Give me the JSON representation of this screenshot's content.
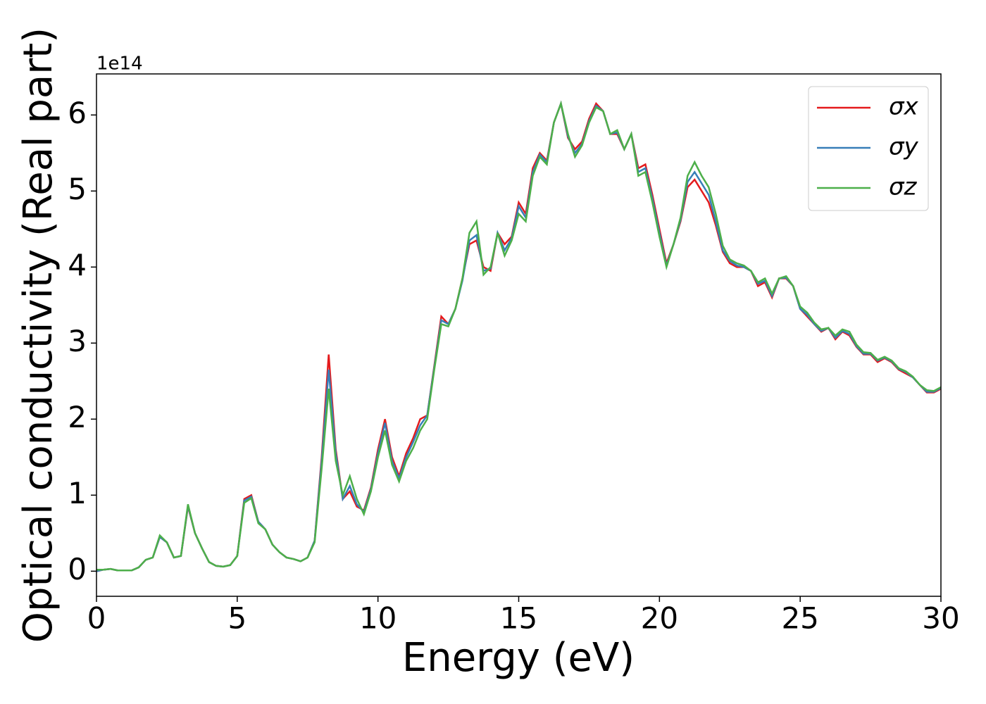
{
  "chart_data": {
    "type": "line",
    "xlabel": "Energy (eV)",
    "ylabel": "Optical conductivity (Real part)",
    "y_offset_label": "1e14",
    "xlim": [
      0,
      30
    ],
    "ylim": [
      -0.33,
      6.54
    ],
    "xticks": [
      0,
      5,
      10,
      15,
      20,
      25,
      30
    ],
    "yticks": [
      0,
      1,
      2,
      3,
      4,
      5,
      6
    ],
    "grid": false,
    "legend": "upper right",
    "x": [
      0,
      0.25,
      0.5,
      0.75,
      1,
      1.25,
      1.5,
      1.75,
      2,
      2.25,
      2.5,
      2.75,
      3,
      3.25,
      3.5,
      3.75,
      4,
      4.25,
      4.5,
      4.75,
      5,
      5.25,
      5.5,
      5.75,
      6,
      6.25,
      6.5,
      6.75,
      7,
      7.25,
      7.5,
      7.75,
      8,
      8.25,
      8.5,
      8.75,
      9,
      9.25,
      9.5,
      9.75,
      10,
      10.25,
      10.5,
      10.75,
      11,
      11.25,
      11.5,
      11.75,
      12,
      12.25,
      12.5,
      12.75,
      13,
      13.25,
      13.5,
      13.75,
      14,
      14.25,
      14.5,
      14.75,
      15,
      15.25,
      15.5,
      15.75,
      16,
      16.25,
      16.5,
      16.75,
      17,
      17.25,
      17.5,
      17.75,
      18,
      18.25,
      18.5,
      18.75,
      19,
      19.25,
      19.5,
      19.75,
      20,
      20.25,
      20.5,
      20.75,
      21,
      21.25,
      21.5,
      21.75,
      22,
      22.25,
      22.5,
      22.75,
      23,
      23.25,
      23.5,
      23.75,
      24,
      24.25,
      24.5,
      24.75,
      25,
      25.25,
      25.5,
      25.75,
      26,
      26.25,
      26.5,
      26.75,
      27,
      27.25,
      27.5,
      27.75,
      28,
      28.25,
      28.5,
      28.75,
      29,
      29.25,
      29.5,
      29.75,
      30
    ],
    "series": [
      {
        "name": "σx",
        "color": "#e41a1c",
        "values": [
          0,
          0.02,
          0.03,
          0.01,
          0.01,
          0.01,
          0.05,
          0.15,
          0.18,
          0.45,
          0.38,
          0.18,
          0.2,
          0.85,
          0.5,
          0.3,
          0.12,
          0.07,
          0.06,
          0.08,
          0.2,
          0.95,
          1.0,
          0.65,
          0.55,
          0.35,
          0.25,
          0.18,
          0.16,
          0.13,
          0.18,
          0.4,
          1.5,
          2.85,
          1.6,
          0.95,
          1.05,
          0.85,
          0.8,
          1.1,
          1.6,
          2.0,
          1.5,
          1.25,
          1.55,
          1.75,
          2.0,
          2.05,
          2.7,
          3.35,
          3.25,
          3.45,
          3.85,
          4.3,
          4.35,
          4.0,
          3.95,
          4.45,
          4.3,
          4.4,
          4.85,
          4.7,
          5.3,
          5.5,
          5.4,
          5.9,
          6.15,
          5.7,
          5.55,
          5.65,
          5.95,
          6.15,
          6.05,
          5.75,
          5.75,
          5.55,
          5.75,
          5.3,
          5.35,
          4.95,
          4.5,
          4.05,
          4.3,
          4.6,
          5.05,
          5.15,
          5.0,
          4.85,
          4.55,
          4.2,
          4.05,
          4.0,
          4.0,
          3.95,
          3.75,
          3.8,
          3.6,
          3.85,
          3.85,
          3.75,
          3.45,
          3.35,
          3.25,
          3.15,
          3.2,
          3.05,
          3.15,
          3.1,
          2.95,
          2.85,
          2.85,
          2.75,
          2.8,
          2.75,
          2.65,
          2.6,
          2.55,
          2.45,
          2.35,
          2.35,
          2.4
        ]
      },
      {
        "name": "σy",
        "color": "#377eb8",
        "values": [
          0,
          0.02,
          0.03,
          0.01,
          0.01,
          0.01,
          0.05,
          0.15,
          0.18,
          0.45,
          0.38,
          0.18,
          0.2,
          0.86,
          0.5,
          0.3,
          0.12,
          0.07,
          0.06,
          0.08,
          0.2,
          0.93,
          0.98,
          0.65,
          0.55,
          0.35,
          0.25,
          0.18,
          0.16,
          0.13,
          0.18,
          0.4,
          1.45,
          2.65,
          1.55,
          0.95,
          1.12,
          0.88,
          0.78,
          1.08,
          1.55,
          1.95,
          1.45,
          1.22,
          1.5,
          1.7,
          1.92,
          2.05,
          2.68,
          3.3,
          3.25,
          3.45,
          3.82,
          4.35,
          4.42,
          3.95,
          3.98,
          4.45,
          4.22,
          4.38,
          4.8,
          4.65,
          5.25,
          5.48,
          5.38,
          5.9,
          6.15,
          5.72,
          5.5,
          5.62,
          5.92,
          6.12,
          6.05,
          5.75,
          5.77,
          5.55,
          5.75,
          5.25,
          5.3,
          4.9,
          4.45,
          4.02,
          4.3,
          4.62,
          5.12,
          5.25,
          5.1,
          4.95,
          4.6,
          4.22,
          4.08,
          4.02,
          4.0,
          3.95,
          3.78,
          3.82,
          3.62,
          3.85,
          3.86,
          3.75,
          3.45,
          3.37,
          3.25,
          3.16,
          3.2,
          3.07,
          3.16,
          3.12,
          2.96,
          2.86,
          2.86,
          2.77,
          2.81,
          2.76,
          2.66,
          2.62,
          2.55,
          2.45,
          2.36,
          2.36,
          2.41
        ]
      },
      {
        "name": "σz",
        "color": "#4daf4a",
        "values": [
          0.02,
          0.02,
          0.03,
          0.01,
          0.01,
          0.01,
          0.05,
          0.15,
          0.18,
          0.47,
          0.38,
          0.18,
          0.2,
          0.88,
          0.5,
          0.3,
          0.12,
          0.07,
          0.06,
          0.08,
          0.2,
          0.9,
          0.96,
          0.63,
          0.55,
          0.35,
          0.25,
          0.18,
          0.16,
          0.13,
          0.18,
          0.38,
          1.35,
          2.4,
          1.45,
          1.0,
          1.25,
          0.95,
          0.75,
          1.05,
          1.5,
          1.85,
          1.4,
          1.18,
          1.45,
          1.62,
          1.85,
          2.0,
          2.65,
          3.25,
          3.22,
          3.45,
          3.85,
          4.45,
          4.6,
          3.9,
          4.0,
          4.45,
          4.15,
          4.35,
          4.7,
          4.6,
          5.2,
          5.45,
          5.35,
          5.9,
          6.15,
          5.75,
          5.45,
          5.6,
          5.9,
          6.1,
          6.05,
          5.75,
          5.8,
          5.55,
          5.75,
          5.2,
          5.25,
          4.85,
          4.4,
          4.0,
          4.3,
          4.65,
          5.2,
          5.38,
          5.2,
          5.05,
          4.7,
          4.28,
          4.1,
          4.05,
          4.02,
          3.95,
          3.8,
          3.85,
          3.65,
          3.85,
          3.88,
          3.75,
          3.48,
          3.4,
          3.27,
          3.18,
          3.2,
          3.1,
          3.18,
          3.15,
          2.98,
          2.88,
          2.87,
          2.78,
          2.82,
          2.77,
          2.67,
          2.63,
          2.56,
          2.45,
          2.38,
          2.37,
          2.42
        ]
      }
    ]
  }
}
